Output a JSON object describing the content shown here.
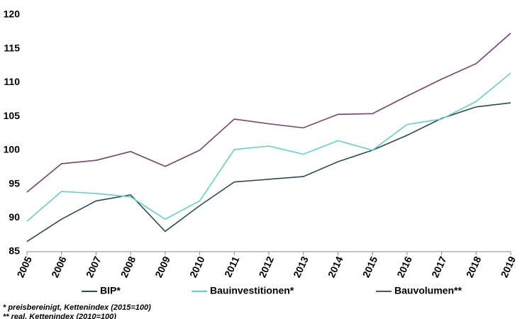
{
  "chart_data": {
    "type": "line",
    "categories": [
      "2005",
      "2006",
      "2007",
      "2008",
      "2009",
      "2010",
      "2011",
      "2012",
      "2013",
      "2014",
      "2015",
      "2016",
      "2017",
      "2018",
      "2019"
    ],
    "series": [
      {
        "name": "BIP*",
        "color": "#2e4a5a",
        "values": [
          86.5,
          89.8,
          92.5,
          93.4,
          88.0,
          91.8,
          95.3,
          95.7,
          96.1,
          98.3,
          100.0,
          102.2,
          104.7,
          106.4,
          107.0
        ]
      },
      {
        "name": "Bauinvestitionen*",
        "color": "#5fd3c8",
        "values": [
          89.5,
          93.9,
          93.6,
          93.1,
          89.8,
          92.5,
          100.1,
          100.6,
          99.4,
          101.4,
          100.0,
          103.8,
          104.6,
          107.2,
          111.4
        ]
      },
      {
        "name": "Bauvolumen**",
        "color": "#7b3f6e",
        "values": [
          93.8,
          98.0,
          98.5,
          99.8,
          97.6,
          100.0,
          104.6,
          103.9,
          103.3,
          105.3,
          105.4,
          108.0,
          110.5,
          112.8,
          117.3
        ]
      }
    ],
    "ylim": [
      85,
      120
    ],
    "yticks": [
      85,
      90,
      95,
      100,
      105,
      110,
      115,
      120
    ],
    "grid": false,
    "footnotes": [
      "* preisbereinigt, Kettenindex (2015=100)",
      "** real, Kettenindex (2010=100)"
    ]
  }
}
